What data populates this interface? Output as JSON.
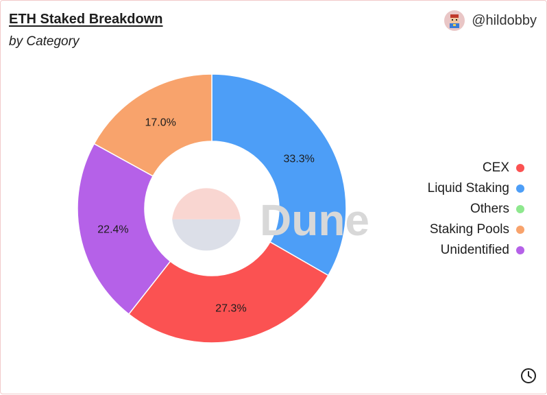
{
  "header": {
    "title": "ETH Staked Breakdown",
    "subtitle": "by Category",
    "author": "@hildobby"
  },
  "watermark": "Dune",
  "icons": {
    "avatar": "avatar-icon",
    "clock": "clock-icon"
  },
  "legend": [
    {
      "label": "CEX",
      "color": "#fb5252"
    },
    {
      "label": "Liquid Staking",
      "color": "#4d9ef7"
    },
    {
      "label": "Others",
      "color": "#8ee88e"
    },
    {
      "label": "Staking Pools",
      "color": "#f8a36c"
    },
    {
      "label": "Unidentified",
      "color": "#b561e8"
    }
  ],
  "chart_data": {
    "type": "pie",
    "title": "ETH Staked Breakdown",
    "subtitle": "by Category",
    "donut": true,
    "legend_position": "right",
    "slices": [
      {
        "label": "Liquid Staking",
        "value": 33.3,
        "display": "33.3%",
        "color": "#4d9ef7"
      },
      {
        "label": "CEX",
        "value": 27.3,
        "display": "27.3%",
        "color": "#fb5252"
      },
      {
        "label": "Unidentified",
        "value": 22.4,
        "display": "22.4%",
        "color": "#b561e8"
      },
      {
        "label": "Staking Pools",
        "value": 17.0,
        "display": "17.0%",
        "color": "#f8a36c"
      },
      {
        "label": "Others",
        "value": 0.0,
        "display": "",
        "color": "#8ee88e"
      }
    ]
  }
}
